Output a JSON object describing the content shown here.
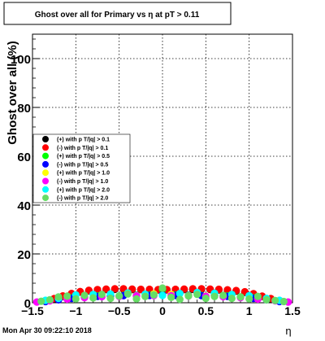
{
  "chart_data": {
    "type": "scatter",
    "title": "Ghost over all for Primary vs   η at pT > 0.11",
    "xlabel": "η",
    "ylabel": "Ghost over all (%)",
    "xlim": [
      -1.5,
      1.5
    ],
    "ylim": [
      0,
      110
    ],
    "x_ticks": [
      -1.5,
      -1,
      -0.5,
      0,
      0.5,
      1,
      1.5
    ],
    "x_tick_labels": [
      "−1.5",
      "−1",
      "−0.5",
      "0",
      "0.5",
      "1",
      "1.5"
    ],
    "y_ticks": [
      0,
      20,
      40,
      60,
      80,
      100
    ],
    "y_tick_labels": [
      "0",
      "20",
      "40",
      "60",
      "80",
      "100"
    ],
    "grid": true,
    "legend_position": "left-middle",
    "timestamp": "Mon Apr 30 09:22:10 2018",
    "series": [
      {
        "name": "(+) with p T/|q| > 0.1",
        "color": "#000000",
        "x": [
          -1.35,
          -1.25,
          -1.15,
          -1.05,
          -0.95,
          -0.85,
          -0.75,
          -0.65,
          -0.55,
          -0.45,
          -0.35,
          -0.25,
          -0.15,
          -0.05,
          0.05,
          0.15,
          0.25,
          0.35,
          0.45,
          0.55,
          0.65,
          0.75,
          0.85,
          0.95,
          1.05,
          1.15,
          1.25,
          1.35
        ],
        "y": [
          0.8,
          1.6,
          2.6,
          3.6,
          4.4,
          4.9,
          5.2,
          5.4,
          5.5,
          5.5,
          5.4,
          5.4,
          5.3,
          5.3,
          5.3,
          5.4,
          5.4,
          5.5,
          5.5,
          5.4,
          5.3,
          5.1,
          4.8,
          4.3,
          3.5,
          2.6,
          1.6,
          0.8
        ]
      },
      {
        "name": "(-) with p T/|q| > 0.1",
        "color": "#ff0000",
        "x": [
          -1.35,
          -1.25,
          -1.15,
          -1.05,
          -0.95,
          -0.85,
          -0.75,
          -0.65,
          -0.55,
          -0.45,
          -0.35,
          -0.25,
          -0.15,
          -0.05,
          0.05,
          0.15,
          0.25,
          0.35,
          0.45,
          0.55,
          0.65,
          0.75,
          0.85,
          0.95,
          1.05,
          1.15,
          1.25,
          1.35
        ],
        "y": [
          0.9,
          1.7,
          2.8,
          3.8,
          4.6,
          5.1,
          5.4,
          5.6,
          5.7,
          5.7,
          5.6,
          5.5,
          5.5,
          5.4,
          5.4,
          5.5,
          5.6,
          5.7,
          5.7,
          5.6,
          5.5,
          5.3,
          5.0,
          4.5,
          3.7,
          2.7,
          1.7,
          0.9
        ]
      },
      {
        "name": "(+) with p T/|q| > 0.5",
        "color": "#00ff00",
        "x": [
          -1.35,
          -1.2,
          -1.05,
          -0.9,
          -0.75,
          -0.6,
          -0.45,
          -0.3,
          -0.15,
          0,
          0.15,
          0.3,
          0.45,
          0.6,
          0.75,
          0.9,
          1.05,
          1.2,
          1.35
        ],
        "y": [
          0.6,
          1.4,
          2.0,
          2.4,
          2.8,
          3.0,
          3.0,
          3.1,
          3.2,
          5.5,
          3.2,
          3.1,
          3.0,
          3.0,
          2.8,
          2.4,
          2.0,
          1.4,
          0.6
        ]
      },
      {
        "name": "(-) with p T/|q| > 0.5",
        "color": "#0000ff",
        "x": [
          -1.35,
          -1.2,
          -1.05,
          -0.9,
          -0.75,
          -0.6,
          -0.45,
          -0.3,
          -0.15,
          0,
          0.15,
          0.3,
          0.45,
          0.6,
          0.75,
          0.9,
          1.05,
          1.2,
          1.35
        ],
        "y": [
          0.5,
          1.2,
          1.8,
          2.3,
          2.6,
          2.8,
          2.9,
          3.0,
          3.0,
          3.2,
          3.0,
          3.0,
          2.9,
          2.8,
          2.6,
          2.3,
          1.8,
          1.2,
          0.5
        ]
      },
      {
        "name": "(+) with p T/|q| > 1.0",
        "color": "#ffff00",
        "x": [
          -1.3,
          -1.1,
          -0.9,
          -0.7,
          -0.5,
          -0.3,
          -0.1,
          0.1,
          0.3,
          0.5,
          0.7,
          0.9,
          1.1,
          1.3
        ],
        "y": [
          0.9,
          1.6,
          2.2,
          2.6,
          2.7,
          2.9,
          3.6,
          3.4,
          2.9,
          2.7,
          2.6,
          2.2,
          1.6,
          0.9
        ]
      },
      {
        "name": "(-) with p T/|q| > 1.0",
        "color": "#ff00ff",
        "x": [
          -1.45,
          -1.3,
          -1.1,
          -0.9,
          -0.7,
          -0.5,
          -0.3,
          -0.1,
          0.1,
          0.3,
          0.5,
          0.7,
          0.9,
          1.1,
          1.3,
          1.45
        ],
        "y": [
          0.3,
          0.8,
          1.5,
          2.1,
          2.5,
          2.6,
          2.8,
          2.9,
          2.9,
          2.8,
          2.6,
          2.5,
          2.1,
          1.5,
          0.8,
          0.3
        ]
      },
      {
        "name": "(+) with p T/|q| > 2.0",
        "color": "#00ffff",
        "x": [
          -1.35,
          -1.2,
          -1.0,
          -0.8,
          -0.6,
          -0.4,
          -0.2,
          0.0,
          0.2,
          0.4,
          0.6,
          0.8,
          1.0,
          1.2,
          1.35
        ],
        "y": [
          1.0,
          1.8,
          3.2,
          3.4,
          3.6,
          4.0,
          3.5,
          3.0,
          3.8,
          4.2,
          3.9,
          3.4,
          2.9,
          1.8,
          1.0
        ]
      },
      {
        "name": "(-) with p T/|q| > 2.0",
        "color": "#66dd66",
        "x": [
          -1.4,
          -1.3,
          -1.2,
          -1.1,
          -1.0,
          -0.9,
          -0.8,
          -0.7,
          -0.6,
          -0.5,
          -0.4,
          -0.3,
          -0.2,
          -0.1,
          0.0,
          0.1,
          0.2,
          0.3,
          0.4,
          0.5,
          0.6,
          0.7,
          0.8,
          0.9,
          1.0,
          1.1,
          1.2,
          1.3,
          1.4
        ],
        "y": [
          0.6,
          1.2,
          2.4,
          2.7,
          1.6,
          3.0,
          2.0,
          3.4,
          1.8,
          2.8,
          3.6,
          1.6,
          2.6,
          3.2,
          6.0,
          2.2,
          1.4,
          2.8,
          3.4,
          1.8,
          2.6,
          3.0,
          1.8,
          2.4,
          1.6,
          2.6,
          1.2,
          0.9,
          0.5
        ]
      }
    ]
  }
}
